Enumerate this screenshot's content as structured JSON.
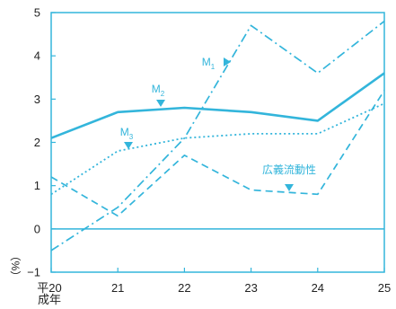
{
  "chart_data": {
    "type": "line",
    "ylabel": "（%）",
    "ylim": [
      -1,
      5
    ],
    "yticks": [
      "5",
      "4",
      "3",
      "2",
      "1",
      "0",
      "−1"
    ],
    "categories": [
      "平20\n成年",
      "21",
      "22",
      "23",
      "24",
      "25"
    ],
    "category_lines": [
      [
        "平20",
        "成年"
      ],
      [
        "21"
      ],
      [
        "22"
      ],
      [
        "23"
      ],
      [
        "24"
      ],
      [
        "25"
      ]
    ],
    "grid": false,
    "zero_line": true,
    "line_color": "#33b5db",
    "series": [
      {
        "name": "M1",
        "sub": "1",
        "base": "M",
        "style": "dashdot",
        "values": [
          -0.5,
          0.5,
          2.1,
          4.7,
          3.6,
          4.8
        ]
      },
      {
        "name": "M2",
        "sub": "2",
        "base": "M",
        "style": "solid",
        "values": [
          2.1,
          2.7,
          2.8,
          2.7,
          2.5,
          3.6
        ]
      },
      {
        "name": "M3",
        "sub": "3",
        "base": "M",
        "style": "dotted",
        "values": [
          0.8,
          1.8,
          2.1,
          2.2,
          2.2,
          2.9
        ]
      },
      {
        "name": "広義流動性",
        "sub": "",
        "base": "広義流動性",
        "style": "dashed",
        "values": [
          1.2,
          0.3,
          1.7,
          0.9,
          0.8,
          3.2
        ]
      }
    ]
  }
}
